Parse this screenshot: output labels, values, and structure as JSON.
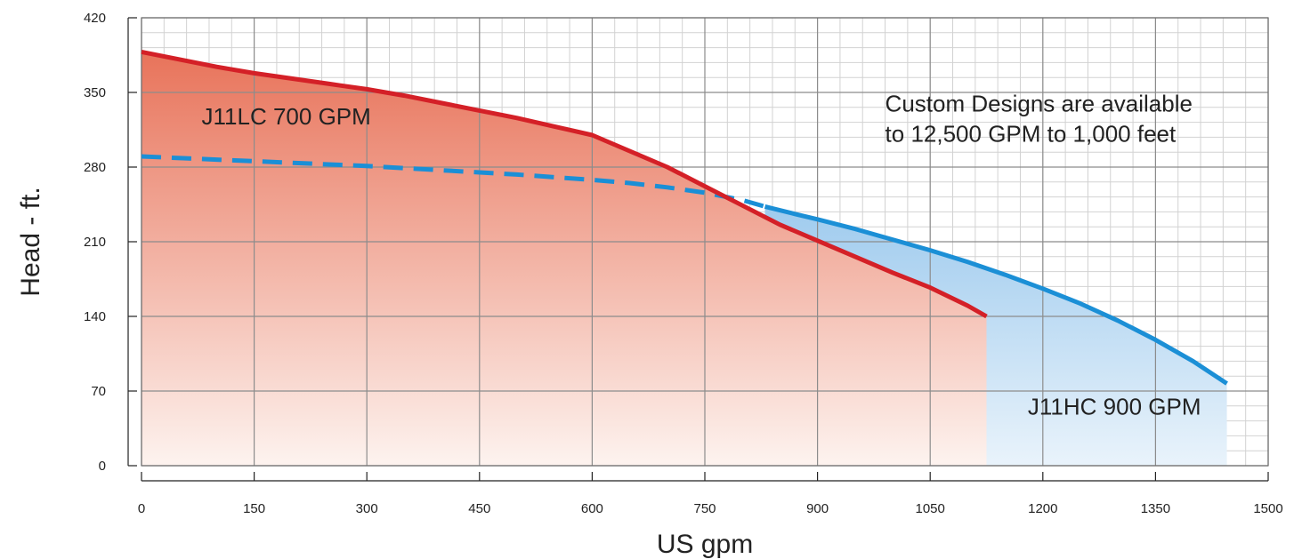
{
  "chart_data": {
    "type": "line",
    "title": "",
    "xlabel": "US gpm",
    "ylabel": "Head - ft.",
    "xlim": [
      0,
      1500
    ],
    "ylim": [
      0,
      420
    ],
    "x_ticks": [
      0,
      150,
      300,
      450,
      600,
      750,
      900,
      1050,
      1200,
      1350,
      1500
    ],
    "y_ticks": [
      0,
      70,
      140,
      210,
      280,
      350,
      420
    ],
    "x_tick_labels": [
      "0",
      "150",
      "300",
      "450",
      "600",
      "750",
      "900",
      "1050",
      "1200",
      "1350",
      "1500"
    ],
    "y_tick_labels": [
      "0",
      "70",
      "140",
      "210",
      "280",
      "350",
      "420"
    ],
    "grid": true,
    "minor_grid_step": {
      "x": 30,
      "y": 14
    },
    "series": [
      {
        "name": "J11LC 700 GPM",
        "color": "#d42027",
        "fill_top": "#e8735a",
        "fill_bottom": "#fdf3ef",
        "style": "solid",
        "x": [
          0,
          50,
          100,
          150,
          200,
          250,
          300,
          350,
          400,
          450,
          500,
          550,
          600,
          650,
          700,
          750,
          800,
          850,
          900,
          950,
          1000,
          1050,
          1100,
          1125
        ],
        "y": [
          388,
          381,
          374,
          368,
          363,
          358,
          353,
          347,
          340,
          333,
          326,
          318,
          310,
          295,
          280,
          262,
          244,
          226,
          211,
          196,
          181,
          167,
          150,
          140
        ]
      },
      {
        "name": "J11HC 900 GPM",
        "color": "#1b8fd6",
        "fill_top": "#9fcbee",
        "fill_bottom": "#e9f3fb",
        "style": "solid",
        "x": [
          830,
          870,
          900,
          950,
          1000,
          1050,
          1100,
          1150,
          1200,
          1250,
          1300,
          1350,
          1400,
          1445
        ],
        "y": [
          243,
          236,
          231,
          222,
          212,
          202,
          191,
          179,
          166,
          152,
          136,
          118,
          98,
          77
        ]
      },
      {
        "name": "",
        "color": "#1b8fd6",
        "style": "dashed",
        "x": [
          0,
          100,
          200,
          300,
          400,
          500,
          600,
          650,
          700,
          750,
          800,
          830
        ],
        "y": [
          290,
          287,
          284,
          281,
          277,
          273,
          268,
          265,
          261,
          256,
          249,
          243
        ]
      }
    ],
    "annotations": [
      {
        "lines": [
          "J11LC 700 GPM"
        ],
        "anchor": [
          80,
          320
        ]
      },
      {
        "lines": [
          "Custom Designs are available",
          "to 12,500 GPM  to 1,000 feet"
        ],
        "anchor": [
          990,
          332
        ]
      },
      {
        "lines": [
          "J11HC 900 GPM"
        ],
        "anchor": [
          1180,
          48
        ]
      }
    ]
  }
}
